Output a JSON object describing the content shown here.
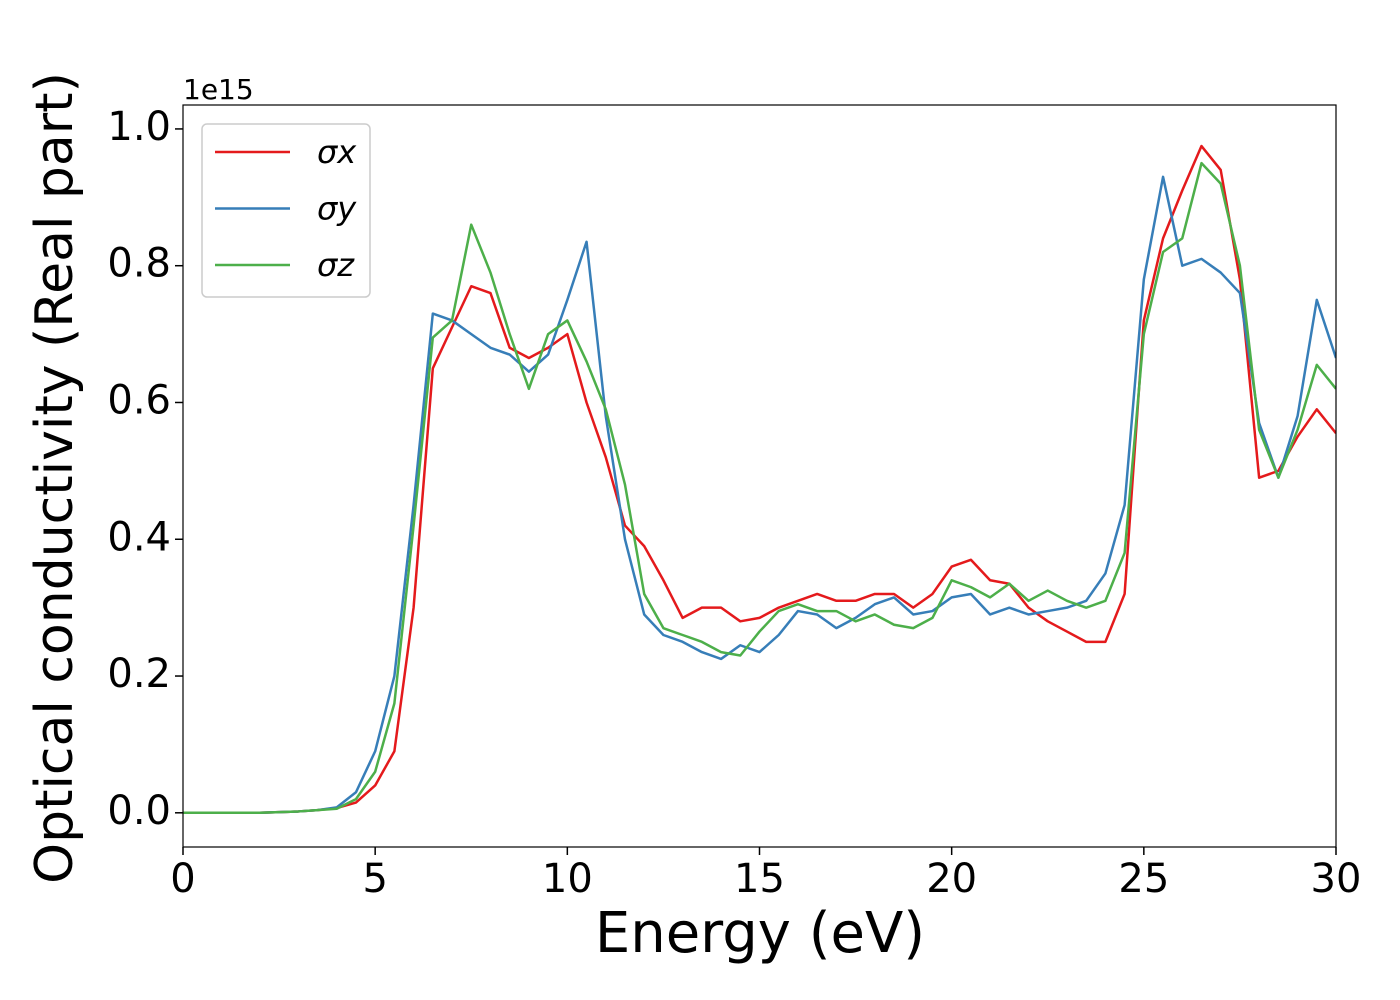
{
  "chart_data": {
    "type": "line",
    "x_label": "Energy (eV)",
    "y_label": "Optical conductivity (Real part)",
    "y_offset_label": "1e15",
    "x": [
      0,
      0.5,
      1,
      1.5,
      2,
      2.5,
      3,
      3.5,
      4,
      4.5,
      5,
      5.5,
      6,
      6.5,
      7,
      7.5,
      8,
      8.5,
      9,
      9.5,
      10,
      10.5,
      11,
      11.5,
      12,
      12.5,
      13,
      13.5,
      14,
      14.5,
      15,
      15.5,
      16,
      16.5,
      17,
      17.5,
      18,
      18.5,
      19,
      19.5,
      20,
      20.5,
      21,
      21.5,
      22,
      22.5,
      23,
      23.5,
      24,
      24.5,
      25,
      25.5,
      26,
      26.5,
      27,
      27.5,
      28,
      28.5,
      29,
      29.5,
      30
    ],
    "series": [
      {
        "name": "σx",
        "color": "#e41a1c",
        "values": [
          0,
          0,
          0,
          0,
          0,
          0.001,
          0.002,
          0.004,
          0.007,
          0.015,
          0.04,
          0.09,
          0.3,
          0.65,
          0.71,
          0.77,
          0.76,
          0.68,
          0.665,
          0.68,
          0.7,
          0.6,
          0.52,
          0.42,
          0.39,
          0.34,
          0.285,
          0.3,
          0.3,
          0.28,
          0.285,
          0.3,
          0.31,
          0.32,
          0.31,
          0.31,
          0.32,
          0.32,
          0.3,
          0.32,
          0.36,
          0.37,
          0.34,
          0.335,
          0.3,
          0.28,
          0.265,
          0.25,
          0.25,
          0.32,
          0.72,
          0.84,
          0.91,
          0.975,
          0.94,
          0.78,
          0.49,
          0.5,
          0.55,
          0.59,
          0.555
        ]
      },
      {
        "name": "σy",
        "color": "#377eb8",
        "values": [
          0,
          0,
          0,
          0,
          0,
          0.001,
          0.002,
          0.004,
          0.008,
          0.03,
          0.09,
          0.2,
          0.45,
          0.73,
          0.72,
          0.7,
          0.68,
          0.67,
          0.645,
          0.67,
          0.75,
          0.835,
          0.58,
          0.4,
          0.29,
          0.26,
          0.25,
          0.235,
          0.225,
          0.245,
          0.235,
          0.26,
          0.295,
          0.29,
          0.27,
          0.285,
          0.305,
          0.315,
          0.29,
          0.295,
          0.315,
          0.32,
          0.29,
          0.3,
          0.29,
          0.295,
          0.3,
          0.31,
          0.35,
          0.45,
          0.78,
          0.93,
          0.8,
          0.81,
          0.79,
          0.76,
          0.57,
          0.49,
          0.58,
          0.75,
          0.665
        ]
      },
      {
        "name": "σz",
        "color": "#4daf4a",
        "values": [
          0,
          0,
          0,
          0,
          0,
          0.001,
          0.002,
          0.004,
          0.006,
          0.02,
          0.06,
          0.16,
          0.42,
          0.695,
          0.72,
          0.86,
          0.79,
          0.7,
          0.62,
          0.7,
          0.72,
          0.66,
          0.59,
          0.48,
          0.32,
          0.27,
          0.26,
          0.25,
          0.235,
          0.23,
          0.265,
          0.295,
          0.305,
          0.295,
          0.295,
          0.28,
          0.29,
          0.275,
          0.27,
          0.285,
          0.34,
          0.33,
          0.315,
          0.335,
          0.31,
          0.325,
          0.31,
          0.3,
          0.31,
          0.38,
          0.7,
          0.82,
          0.84,
          0.95,
          0.92,
          0.8,
          0.56,
          0.49,
          0.56,
          0.655,
          0.62
        ]
      }
    ],
    "xlim": [
      0,
      30
    ],
    "xticks": [
      0,
      5,
      10,
      15,
      20,
      25,
      30
    ],
    "ylim": [
      -0.05,
      1.035
    ],
    "yticks": [
      {
        "value": 0,
        "label": "0.0"
      },
      {
        "value": 0.2,
        "label": "0.2"
      },
      {
        "value": 0.4,
        "label": "0.4"
      },
      {
        "value": 0.6,
        "label": "0.6"
      },
      {
        "value": 0.8,
        "label": "0.8"
      },
      {
        "value": 1.0,
        "label": "1.0"
      }
    ],
    "legend": "upper left"
  }
}
